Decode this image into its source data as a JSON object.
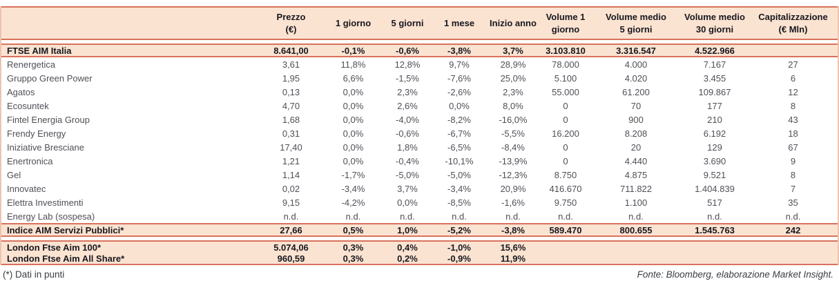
{
  "chart_data": {
    "type": "table",
    "title": "",
    "columns": [
      "",
      "Prezzo\n(€)",
      "1 giorno",
      "5 giorni",
      "1 mese",
      "Inizio anno",
      "Volume 1\ngiorno",
      "Volume medio\n5 giorni",
      "Volume medio\n30 giorni",
      "Capitalizzazione\n(€ Mln)"
    ],
    "sections": [
      {
        "id": "ftse",
        "kind": "band",
        "rows": [
          {
            "name": "FTSE AIM Italia",
            "values": [
              "8.641,00",
              "-0,1%",
              "-0,6%",
              "-3,8%",
              "3,7%",
              "3.103.810",
              "3.316.547",
              "4.522.966",
              ""
            ]
          }
        ]
      },
      {
        "id": "stocks",
        "kind": "plain",
        "rows": [
          {
            "name": "Renergetica",
            "values": [
              "3,61",
              "11,8%",
              "12,8%",
              "9,7%",
              "28,9%",
              "78.000",
              "4.000",
              "7.167",
              "27"
            ]
          },
          {
            "name": "Gruppo Green Power",
            "values": [
              "1,95",
              "6,6%",
              "-1,5%",
              "-7,6%",
              "25,0%",
              "5.100",
              "4.020",
              "3.455",
              "6"
            ]
          },
          {
            "name": "Agatos",
            "values": [
              "0,13",
              "0,0%",
              "2,3%",
              "-2,6%",
              "2,3%",
              "55.000",
              "61.200",
              "109.867",
              "12"
            ]
          },
          {
            "name": "Ecosuntek",
            "values": [
              "4,70",
              "0,0%",
              "2,6%",
              "0,0%",
              "8,0%",
              "0",
              "70",
              "177",
              "8"
            ]
          },
          {
            "name": "Fintel Energia Group",
            "values": [
              "1,68",
              "0,0%",
              "-4,0%",
              "-8,2%",
              "-16,0%",
              "0",
              "900",
              "210",
              "43"
            ]
          },
          {
            "name": "Frendy Energy",
            "values": [
              "0,31",
              "0,0%",
              "-0,6%",
              "-6,7%",
              "-5,5%",
              "16.200",
              "8.208",
              "6.192",
              "18"
            ]
          },
          {
            "name": "Iniziative Bresciane",
            "values": [
              "17,40",
              "0,0%",
              "1,8%",
              "-6,5%",
              "-8,4%",
              "0",
              "20",
              "129",
              "67"
            ]
          },
          {
            "name": "Enertronica",
            "values": [
              "1,21",
              "0,0%",
              "-0,4%",
              "-10,1%",
              "-13,9%",
              "0",
              "4.440",
              "3.690",
              "9"
            ]
          },
          {
            "name": "Gel",
            "values": [
              "1,14",
              "-1,7%",
              "-5,0%",
              "-5,0%",
              "-12,3%",
              "8.750",
              "4.875",
              "9.521",
              "8"
            ]
          },
          {
            "name": "Innovatec",
            "values": [
              "0,02",
              "-3,4%",
              "3,7%",
              "-3,4%",
              "20,9%",
              "416.670",
              "711.822",
              "1.404.839",
              "7"
            ]
          },
          {
            "name": "Elettra Investimenti",
            "values": [
              "9,15",
              "-4,2%",
              "0,0%",
              "-8,5%",
              "-1,6%",
              "9.750",
              "1.100",
              "517",
              "35"
            ]
          },
          {
            "name": "Energy Lab (sospesa)",
            "values": [
              "n.d.",
              "n.d.",
              "n.d.",
              "n.d.",
              "n.d.",
              "n.d.",
              "n.d.",
              "n.d.",
              "n.d."
            ]
          }
        ]
      },
      {
        "id": "servizi",
        "kind": "band",
        "rows": [
          {
            "name": "Indice AIM Servizi Pubblici*",
            "values": [
              "27,66",
              "0,5%",
              "1,0%",
              "-5,2%",
              "-3,8%",
              "589.470",
              "800.655",
              "1.545.763",
              "242"
            ]
          }
        ]
      },
      {
        "id": "london",
        "kind": "band",
        "rows": [
          {
            "name": "London Ftse Aim 100*",
            "values": [
              "5.074,06",
              "0,3%",
              "0,4%",
              "-1,0%",
              "15,6%",
              "",
              "",
              "",
              ""
            ]
          },
          {
            "name": "London Ftse Aim All Share*",
            "values": [
              "960,59",
              "0,3%",
              "0,2%",
              "-0,9%",
              "11,9%",
              "",
              "",
              "",
              ""
            ]
          }
        ]
      }
    ]
  },
  "footer": {
    "note": "(*) Dati in punti",
    "source": "Fonte: Bloomberg, elaborazione Market Insight."
  },
  "colors": {
    "band_bg": "#fbe3d1",
    "border": "#d9715c",
    "edge_border": "#eec3b0",
    "text_dark": "#17171f",
    "text_body": "#4f4f57"
  }
}
